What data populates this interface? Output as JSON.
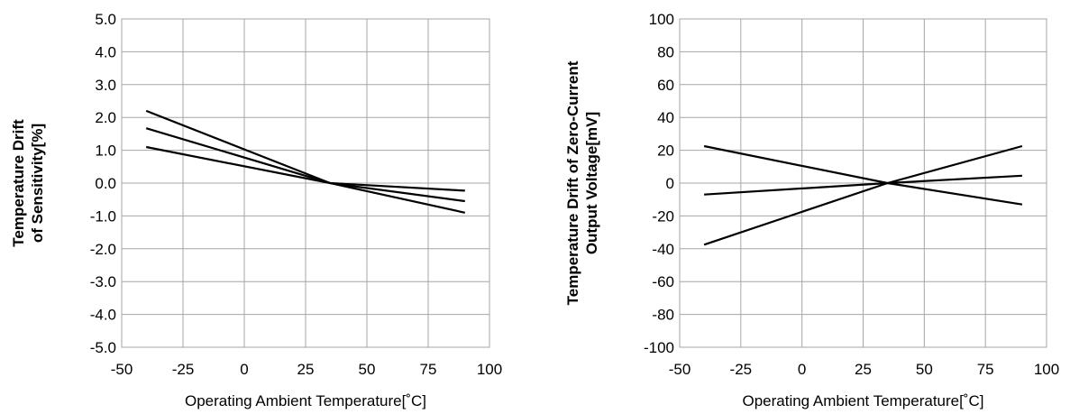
{
  "chart_data": [
    {
      "type": "line",
      "xlabel": "Operating Ambient Temperature[˚C]",
      "ylabel_lines": [
        "Temperature Drift",
        "of Sensitivity[%]"
      ],
      "xlim": [
        -50,
        100
      ],
      "ylim": [
        -5.0,
        5.0
      ],
      "x_ticks": [
        "-50",
        "-25",
        "0",
        "25",
        "50",
        "75",
        "100"
      ],
      "y_ticks": [
        "5.0",
        "4.0",
        "3.0",
        "2.0",
        "1.0",
        "0.0",
        "-1.0",
        "-2.0",
        "-3.0",
        "-4.0",
        "-5.0"
      ],
      "grid": true,
      "series": [
        {
          "x": [
            -40,
            35,
            90
          ],
          "values": [
            2.2,
            0.0,
            -0.9
          ]
        },
        {
          "x": [
            -40,
            35,
            90
          ],
          "values": [
            1.67,
            0.0,
            -0.55
          ]
        },
        {
          "x": [
            -40,
            35,
            90
          ],
          "values": [
            1.1,
            0.0,
            -0.23
          ]
        }
      ]
    },
    {
      "type": "line",
      "xlabel": "Operating Ambient Temperature[˚C]",
      "ylabel_lines": [
        "Temperature Drift of Zero-Current",
        "Output Voltage[mV]"
      ],
      "xlim": [
        -50,
        100
      ],
      "ylim": [
        -100,
        100
      ],
      "x_ticks": [
        "-50",
        "-25",
        "0",
        "25",
        "50",
        "75",
        "100"
      ],
      "y_ticks": [
        "100",
        "80",
        "60",
        "40",
        "20",
        "0",
        "-20",
        "-40",
        "-60",
        "-80",
        "-100"
      ],
      "grid": true,
      "series": [
        {
          "x": [
            -40,
            35,
            90
          ],
          "values": [
            22.5,
            0.0,
            -13.0
          ]
        },
        {
          "x": [
            -40,
            35,
            90
          ],
          "values": [
            -7.0,
            0.0,
            4.5
          ]
        },
        {
          "x": [
            -40,
            35,
            90
          ],
          "values": [
            -37.5,
            0.0,
            22.5
          ]
        }
      ]
    }
  ]
}
